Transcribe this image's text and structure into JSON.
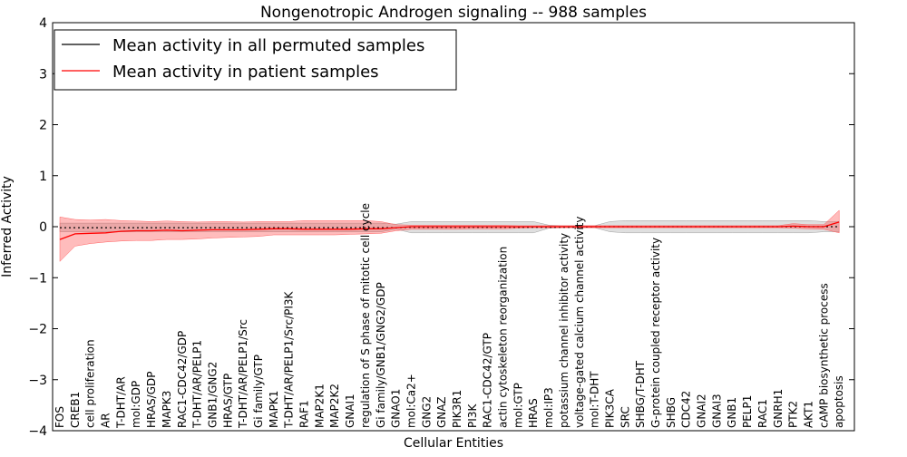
{
  "chart_data": {
    "type": "line",
    "title": "Nongenotropic Androgen signaling -- 988 samples",
    "xlabel": "Cellular Entities",
    "ylabel": "Inferred Activity",
    "ylim": [
      -4,
      4
    ],
    "yticks": [
      -4,
      -3,
      -2,
      -1,
      0,
      1,
      2,
      3,
      4
    ],
    "ytick_labels": [
      "−4",
      "−3",
      "−2",
      "−1",
      "0",
      "1",
      "2",
      "3",
      "4"
    ],
    "grid": false,
    "legend_position": "top-left",
    "categories": [
      "FOS",
      "CREB1",
      "cell proliferation",
      "AR",
      "T-DHT/AR",
      "mol:GDP",
      "HRAS/GDP",
      "MAPK3",
      "RAC1-CDC42/GDP",
      "T-DHT/AR/PELP1",
      "GNB1/GNG2",
      "HRAS/GTP",
      "T-DHT/AR/PELP1/Src",
      "Gi family/GTP",
      "MAPK1",
      "T-DHT/AR/PELP1/Src/PI3K",
      "RAF1",
      "MAP2K1",
      "MAP2K2",
      "GNAI1",
      "regulation of S phase of mitotic cell cycle",
      "Gi family/GNB1/GNG2/GDP",
      "GNAO1",
      "mol:Ca2+",
      "GNG2",
      "GNAZ",
      "PIK3R1",
      "PI3K",
      "RAC1-CDC42/GTP",
      "actin cytoskeleton reorganization",
      "mol:GTP",
      "HRAS",
      "mol:IP3",
      "potassium channel inhibitor activity",
      "voltage-gated calcium channel activity",
      "mol:T-DHT",
      "PIK3CA",
      "SRC",
      "SHBG/T-DHT",
      "G-protein coupled receptor activity",
      "SHBG",
      "CDC42",
      "GNAI2",
      "GNAI3",
      "GNB1",
      "PELP1",
      "RAC1",
      "GNRH1",
      "PTK2",
      "AKT1",
      "cAMP biosynthetic process",
      "apoptosis"
    ],
    "series": [
      {
        "name": "Mean activity in all permuted samples",
        "color": "#000000",
        "mean": [
          -0.02,
          -0.02,
          -0.02,
          -0.02,
          -0.02,
          -0.02,
          -0.02,
          -0.02,
          -0.02,
          -0.02,
          -0.02,
          -0.02,
          -0.02,
          -0.02,
          -0.02,
          -0.02,
          -0.02,
          -0.02,
          -0.02,
          -0.02,
          -0.02,
          -0.02,
          -0.02,
          -0.01,
          -0.01,
          -0.01,
          -0.01,
          -0.01,
          -0.01,
          -0.01,
          -0.01,
          -0.01,
          -0.01,
          -0.01,
          -0.01,
          0.0,
          0.0,
          0.0,
          0.0,
          0.0,
          0.0,
          0.0,
          0.0,
          0.0,
          0.0,
          0.0,
          0.0,
          0.0,
          0.0,
          0.0,
          0.0,
          0.0
        ],
        "lower": [
          -0.1,
          -0.1,
          -0.1,
          -0.1,
          -0.1,
          -0.1,
          -0.1,
          -0.1,
          -0.1,
          -0.1,
          -0.1,
          -0.1,
          -0.1,
          -0.1,
          -0.1,
          -0.1,
          -0.1,
          -0.1,
          -0.1,
          -0.1,
          -0.1,
          -0.1,
          -0.05,
          -0.12,
          -0.12,
          -0.12,
          -0.12,
          -0.12,
          -0.12,
          -0.12,
          -0.12,
          -0.12,
          -0.03,
          -0.02,
          -0.02,
          -0.02,
          -0.1,
          -0.12,
          -0.12,
          -0.12,
          -0.12,
          -0.12,
          -0.12,
          -0.12,
          -0.12,
          -0.12,
          -0.12,
          -0.12,
          -0.12,
          -0.12,
          -0.1,
          -0.1
        ],
        "upper": [
          0.07,
          0.07,
          0.07,
          0.07,
          0.07,
          0.07,
          0.07,
          0.07,
          0.07,
          0.07,
          0.07,
          0.07,
          0.07,
          0.07,
          0.07,
          0.07,
          0.07,
          0.07,
          0.07,
          0.07,
          0.07,
          0.07,
          0.05,
          0.1,
          0.1,
          0.1,
          0.1,
          0.1,
          0.1,
          0.1,
          0.1,
          0.1,
          0.03,
          0.02,
          0.02,
          0.02,
          0.1,
          0.12,
          0.12,
          0.12,
          0.12,
          0.12,
          0.12,
          0.12,
          0.12,
          0.12,
          0.12,
          0.12,
          0.12,
          0.12,
          0.1,
          0.1
        ]
      },
      {
        "name": "Mean activity in patient samples",
        "color": "#ff0000",
        "mean": [
          -0.25,
          -0.14,
          -0.13,
          -0.12,
          -0.09,
          -0.08,
          -0.08,
          -0.07,
          -0.08,
          -0.07,
          -0.06,
          -0.06,
          -0.06,
          -0.05,
          -0.04,
          -0.04,
          -0.05,
          -0.05,
          -0.05,
          -0.05,
          -0.04,
          -0.04,
          -0.02,
          0.0,
          0.0,
          0.0,
          0.0,
          0.0,
          0.0,
          0.0,
          0.0,
          0.0,
          0.0,
          0.0,
          0.0,
          0.0,
          0.0,
          0.0,
          0.0,
          0.0,
          0.0,
          0.0,
          0.0,
          0.0,
          0.0,
          0.0,
          0.0,
          0.0,
          0.01,
          0.0,
          0.0,
          0.09
        ],
        "lower": [
          -0.68,
          -0.38,
          -0.33,
          -0.3,
          -0.28,
          -0.27,
          -0.27,
          -0.25,
          -0.25,
          -0.24,
          -0.22,
          -0.21,
          -0.2,
          -0.19,
          -0.16,
          -0.16,
          -0.16,
          -0.16,
          -0.16,
          -0.15,
          -0.14,
          -0.13,
          -0.08,
          -0.05,
          -0.05,
          -0.05,
          -0.05,
          -0.04,
          -0.04,
          -0.04,
          -0.03,
          -0.02,
          -0.02,
          -0.02,
          -0.02,
          -0.02,
          -0.02,
          -0.02,
          -0.02,
          -0.02,
          -0.02,
          -0.02,
          -0.02,
          -0.02,
          -0.02,
          -0.02,
          -0.02,
          -0.02,
          -0.03,
          -0.04,
          -0.05,
          -0.12
        ],
        "upper": [
          0.19,
          0.14,
          0.13,
          0.14,
          0.12,
          0.11,
          0.1,
          0.11,
          0.1,
          0.09,
          0.1,
          0.1,
          0.09,
          0.1,
          0.1,
          0.1,
          0.12,
          0.12,
          0.12,
          0.12,
          0.12,
          0.1,
          0.04,
          0.03,
          0.03,
          0.03,
          0.03,
          0.03,
          0.03,
          0.03,
          0.02,
          0.02,
          0.02,
          0.02,
          0.02,
          0.02,
          0.02,
          0.02,
          0.02,
          0.02,
          0.02,
          0.02,
          0.02,
          0.02,
          0.02,
          0.02,
          0.02,
          0.02,
          0.06,
          0.04,
          0.04,
          0.32
        ]
      }
    ]
  }
}
